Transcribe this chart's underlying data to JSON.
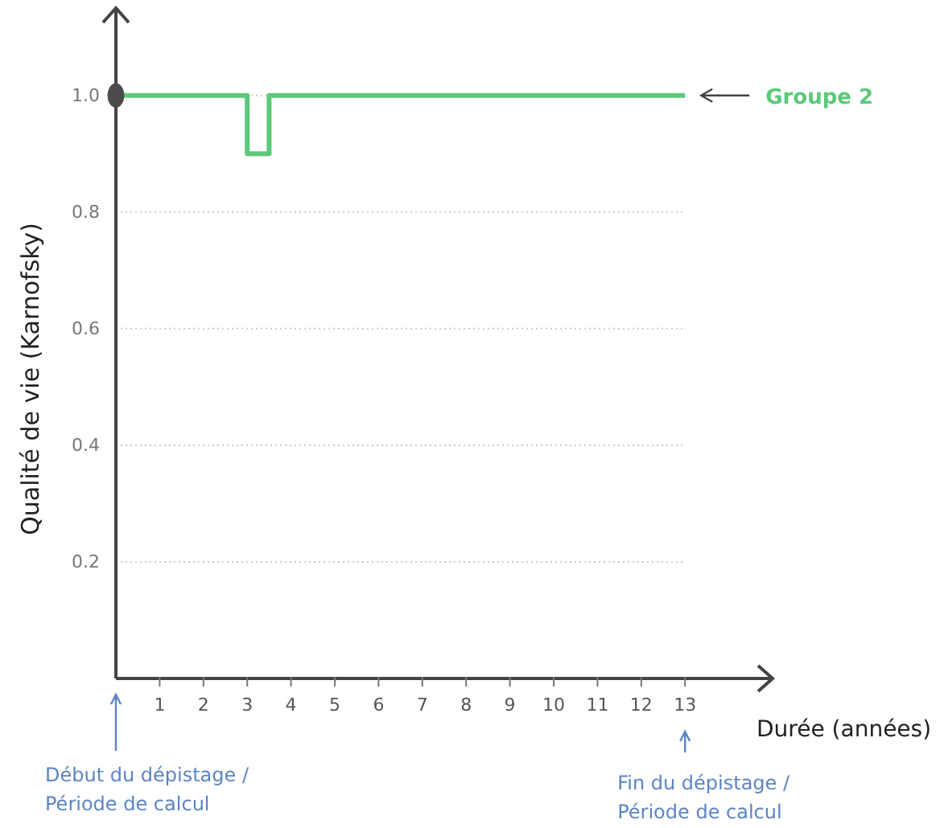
{
  "chart_data": {
    "type": "step",
    "xlabel": "Durée (années)",
    "ylabel": "Qualité de vie (Karnofsky)",
    "xlim": [
      0,
      15
    ],
    "ylim": [
      0,
      1.15
    ],
    "xticks": [
      1,
      2,
      3,
      4,
      5,
      6,
      7,
      8,
      9,
      10,
      11,
      12,
      13
    ],
    "yticks": [
      0.2,
      0.4,
      0.6,
      0.8,
      {
        "value": 1,
        "label": "1.0"
      }
    ],
    "grid": "y",
    "series": [
      {
        "name": "Groupe 2",
        "color": "#5cc97a",
        "x": [
          0,
          3,
          3.5,
          13
        ],
        "values": [
          1,
          0.9,
          1,
          1
        ]
      },
      {
        "type": "scatter",
        "color": "#4d4a4e",
        "marker": "circle",
        "x": [
          0
        ],
        "values": [
          1
        ]
      }
    ],
    "annotations": [
      "Début du dépistage / Période de calcul",
      "Fin du dépistage / Période de calcul"
    ]
  }
}
